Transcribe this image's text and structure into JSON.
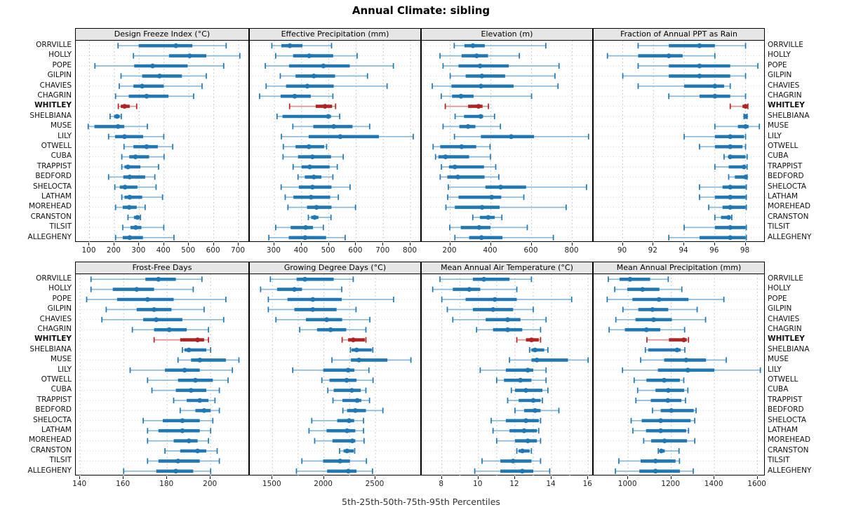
{
  "title": "Annual Climate: sibling",
  "footer": "5th-25th-50th-75th-95th Percentiles",
  "percentile_labels": [
    "5th",
    "25th",
    "50th",
    "75th",
    "95th"
  ],
  "highlight_site": "WHITLEY",
  "sites": [
    "ORRVILLE",
    "HOLLY",
    "POPE",
    "GILPIN",
    "CHAVIES",
    "CHAGRIN",
    "WHITLEY",
    "SHELBIANA",
    "MUSE",
    "LILY",
    "OTWELL",
    "CUBA",
    "TRAPPIST",
    "BEDFORD",
    "SHELOCTA",
    "LATHAM",
    "MOREHEAD",
    "CRANSTON",
    "TILSIT",
    "ALLEGHENY"
  ],
  "colors": {
    "series": "#1f77b4",
    "series_light": "#8ab9dc",
    "highlight": "#b22222",
    "highlight_light": "#d9948e",
    "grid": "#cccccc",
    "header_bg": "#e6e6e6",
    "border": "#000000",
    "text": "#111111"
  },
  "chart_data": [
    {
      "type": "percentile-interval",
      "title": "Design Freeze Index (°C)",
      "ticks": [
        100,
        200,
        300,
        400,
        500,
        600,
        700
      ],
      "minor_ticks": [],
      "range": [
        45,
        745
      ],
      "values": [
        [
          215,
          298,
          448,
          514,
          650
        ],
        [
          277,
          420,
          503,
          570,
          705
        ],
        [
          122,
          280,
          354,
          495,
          640
        ],
        [
          227,
          312,
          382,
          472,
          570
        ],
        [
          220,
          277,
          312,
          399,
          553
        ],
        [
          205,
          258,
          330,
          418,
          519
        ],
        [
          216,
          226,
          241,
          262,
          290
        ],
        [
          183,
          199,
          211,
          222,
          228
        ],
        [
          95,
          120,
          215,
          240,
          333
        ],
        [
          177,
          203,
          241,
          316,
          399
        ],
        [
          239,
          277,
          330,
          375,
          435
        ],
        [
          230,
          260,
          285,
          340,
          400
        ],
        [
          230,
          241,
          255,
          305,
          378
        ],
        [
          177,
          236,
          262,
          324,
          363
        ],
        [
          202,
          222,
          243,
          293,
          368
        ],
        [
          230,
          241,
          262,
          312,
          394
        ],
        [
          205,
          234,
          260,
          290,
          324
        ],
        [
          255,
          279,
          293,
          302,
          305
        ],
        [
          234,
          265,
          286,
          309,
          399
        ],
        [
          205,
          234,
          262,
          315,
          440
        ]
      ]
    },
    {
      "type": "percentile-interval",
      "title": "Effective Precipitation (mm)",
      "ticks": [
        300,
        400,
        500,
        600,
        700,
        800
      ],
      "minor_ticks": [],
      "range": [
        210,
        841
      ],
      "values": [
        [
          291,
          326,
          357,
          403,
          510
        ],
        [
          305,
          369,
          428,
          516,
          604
        ],
        [
          267,
          354,
          480,
          577,
          737
        ],
        [
          322,
          378,
          445,
          523,
          642
        ],
        [
          270,
          343,
          421,
          518,
          714
        ],
        [
          246,
          323,
          375,
          434,
          515
        ],
        [
          356,
          452,
          486,
          512,
          525
        ],
        [
          310,
          330,
          498,
          508,
          540
        ],
        [
          368,
          443,
          518,
          587,
          650
        ],
        [
          326,
          426,
          542,
          684,
          810
        ],
        [
          333,
          378,
          427,
          483,
          492
        ],
        [
          332,
          387,
          440,
          508,
          553
        ],
        [
          369,
          400,
          430,
          503,
          531
        ],
        [
          387,
          412,
          445,
          473,
          515
        ],
        [
          325,
          390,
          440,
          510,
          578
        ],
        [
          340,
          370,
          435,
          505,
          535
        ],
        [
          350,
          420,
          455,
          510,
          598
        ],
        [
          425,
          435,
          448,
          462,
          508
        ],
        [
          305,
          360,
          415,
          442,
          480
        ],
        [
          280,
          353,
          413,
          490,
          560
        ]
      ]
    },
    {
      "type": "percentile-interval",
      "title": "Elevation (m)",
      "ticks": [
        200,
        400,
        600,
        800
      ],
      "minor_ticks": [],
      "range": [
        60,
        905
      ],
      "values": [
        [
          220,
          270,
          312,
          370,
          670
        ],
        [
          150,
          256,
          330,
          386,
          540
        ],
        [
          165,
          241,
          347,
          488,
          735
        ],
        [
          200,
          276,
          356,
          470,
          715
        ],
        [
          112,
          206,
          351,
          512,
          730
        ],
        [
          156,
          209,
          253,
          315,
          600
        ],
        [
          176,
          288,
          339,
          359,
          388
        ],
        [
          224,
          268,
          350,
          362,
          418
        ],
        [
          165,
          245,
          288,
          324,
          447
        ],
        [
          221,
          351,
          500,
          612,
          880
        ],
        [
          116,
          151,
          256,
          328,
          396
        ],
        [
          128,
          142,
          177,
          293,
          398
        ],
        [
          157,
          194,
          223,
          366,
          424
        ],
        [
          151,
          186,
          238,
          369,
          439
        ],
        [
          191,
          373,
          448,
          573,
          870
        ],
        [
          188,
          241,
          404,
          451,
          562
        ],
        [
          179,
          223,
          357,
          443,
          770
        ],
        [
          311,
          346,
          387,
          419,
          454
        ],
        [
          198,
          252,
          342,
          398,
          579
        ],
        [
          223,
          293,
          354,
          457,
          707
        ]
      ]
    },
    {
      "type": "percentile-interval",
      "title": "Fraction of Annual PPT as Rain",
      "ticks": [
        90,
        92,
        94,
        96,
        98
      ],
      "minor_ticks": [],
      "range": [
        88.1,
        99.3
      ],
      "values": [
        [
          91.0,
          93.0,
          95.0,
          96.0,
          98.0
        ],
        [
          89.0,
          91.0,
          93.0,
          93.9,
          96.0
        ],
        [
          91.0,
          93.0,
          95.0,
          97.0,
          98.8
        ],
        [
          90.0,
          93.0,
          95.0,
          97.0,
          98.0
        ],
        [
          91.0,
          94.0,
          96.0,
          96.6,
          97.0
        ],
        [
          93.0,
          95.0,
          96.0,
          97.0,
          98.0
        ],
        [
          97.0,
          97.8,
          98.0,
          98.1,
          98.15
        ],
        [
          97.9,
          97.95,
          98.0,
          98.05,
          98.1
        ],
        [
          96.0,
          97.5,
          98.0,
          98.2,
          98.9
        ],
        [
          94.0,
          96.0,
          97.0,
          97.9,
          98.0
        ],
        [
          95.0,
          96.0,
          97.0,
          97.8,
          98.0
        ],
        [
          96.6,
          96.9,
          97.0,
          98.0,
          98.1
        ],
        [
          96.0,
          96.9,
          97.9,
          98.0,
          98.1
        ],
        [
          96.9,
          97.3,
          98.0,
          98.05,
          98.1
        ],
        [
          95.0,
          96.5,
          97.0,
          98.0,
          98.05
        ],
        [
          95.0,
          96.0,
          97.0,
          98.0,
          98.05
        ],
        [
          95.6,
          96.5,
          97.0,
          98.0,
          98.05
        ],
        [
          96.0,
          96.4,
          96.9,
          97.0,
          97.1
        ],
        [
          94.0,
          96.0,
          97.0,
          98.0,
          98.05
        ],
        [
          93.0,
          95.0,
          97.0,
          98.0,
          98.05
        ]
      ]
    },
    {
      "type": "percentile-interval",
      "title": "Frost-Free Days",
      "ticks": [
        140,
        160,
        180,
        200
      ],
      "minor_ticks": [],
      "range": [
        138,
        218
      ],
      "values": [
        [
          145,
          170,
          176,
          184,
          196
        ],
        [
          145,
          155,
          166,
          174,
          192
        ],
        [
          143,
          157,
          171,
          183,
          207
        ],
        [
          152,
          166,
          174,
          182,
          197
        ],
        [
          150,
          169,
          175,
          187,
          206
        ],
        [
          164,
          174,
          181,
          189,
          199
        ],
        [
          174,
          186,
          194,
          197,
          199
        ],
        [
          187,
          188,
          190,
          198,
          200
        ],
        [
          185,
          191,
          195,
          207,
          213
        ],
        [
          163,
          179,
          188,
          195,
          210
        ],
        [
          171,
          185,
          193,
          201,
          208
        ],
        [
          173,
          184,
          191,
          198,
          204
        ],
        [
          183,
          189,
          195,
          199,
          202
        ],
        [
          186,
          193,
          197,
          200,
          204
        ],
        [
          169,
          178,
          187,
          195,
          201
        ],
        [
          171,
          176,
          187,
          195,
          200
        ],
        [
          171,
          183,
          190,
          194,
          199
        ],
        [
          179,
          186,
          194,
          198,
          203
        ],
        [
          171,
          176,
          185,
          195,
          204
        ],
        [
          160,
          175,
          184,
          192,
          200
        ]
      ]
    },
    {
      "type": "percentile-interval",
      "title": "Growing Degree Days (°C)",
      "ticks": [
        1500,
        2000,
        2500
      ],
      "minor_ticks": [
        1750,
        2250
      ],
      "range": [
        1280,
        2950
      ],
      "values": [
        [
          1480,
          1735,
          1815,
          2095,
          2285
        ],
        [
          1385,
          1545,
          1713,
          1787,
          2173
        ],
        [
          1460,
          1646,
          1892,
          2173,
          2677
        ],
        [
          1460,
          1713,
          1892,
          2123,
          2312
        ],
        [
          1534,
          1825,
          2027,
          2177,
          2446
        ],
        [
          1765,
          1933,
          2065,
          2217,
          2408
        ],
        [
          2177,
          2235,
          2285,
          2397,
          2408
        ],
        [
          2258,
          2269,
          2318,
          2464,
          2475
        ],
        [
          2078,
          2262,
          2341,
          2617,
          2845
        ],
        [
          1697,
          1993,
          2235,
          2296,
          2437
        ],
        [
          1980,
          2054,
          2221,
          2317,
          2477
        ],
        [
          2038,
          2095,
          2271,
          2358,
          2408
        ],
        [
          2088,
          2180,
          2324,
          2363,
          2443
        ],
        [
          2184,
          2225,
          2305,
          2408,
          2573
        ],
        [
          1882,
          2129,
          2244,
          2294,
          2385
        ],
        [
          1855,
          2026,
          2225,
          2305,
          2385
        ],
        [
          1910,
          2083,
          2276,
          2305,
          2390
        ],
        [
          2152,
          2191,
          2225,
          2289,
          2299
        ],
        [
          1786,
          1992,
          2157,
          2253,
          2413
        ],
        [
          1733,
          2031,
          2237,
          2317,
          2472
        ]
      ]
    },
    {
      "type": "percentile-interval",
      "title": "Mean Annual Air Temperature (°C)",
      "ticks": [
        8,
        10,
        12,
        14,
        16
      ],
      "minor_ticks": [
        9,
        11,
        13,
        15
      ],
      "range": [
        6.9,
        16.3
      ],
      "values": [
        [
          7.9,
          9.7,
          10.3,
          11.7,
          12.9
        ],
        [
          7.5,
          8.6,
          9.5,
          10.1,
          12.1
        ],
        [
          8.0,
          9.3,
          10.9,
          12.1,
          15.1
        ],
        [
          8.3,
          9.7,
          10.8,
          11.9,
          13.0
        ],
        [
          8.6,
          10.4,
          11.6,
          12.3,
          13.7
        ],
        [
          9.9,
          10.8,
          11.6,
          12.4,
          13.4
        ],
        [
          12.1,
          12.6,
          12.9,
          13.3,
          13.4
        ],
        [
          12.8,
          12.9,
          13.1,
          13.6,
          13.8
        ],
        [
          11.7,
          12.9,
          13.2,
          14.9,
          16.0
        ],
        [
          10.1,
          11.5,
          12.7,
          13.0,
          13.7
        ],
        [
          11.0,
          11.4,
          12.3,
          12.9,
          13.7
        ],
        [
          11.8,
          12.0,
          12.6,
          13.5,
          13.8
        ],
        [
          11.6,
          12.2,
          13.0,
          13.4,
          13.5
        ],
        [
          12.0,
          12.5,
          13.1,
          13.4,
          14.4
        ],
        [
          10.7,
          11.5,
          12.6,
          13.3,
          13.4
        ],
        [
          10.8,
          11.7,
          12.5,
          13.2,
          13.3
        ],
        [
          11.0,
          12.0,
          12.7,
          13.2,
          13.4
        ],
        [
          12.1,
          12.2,
          12.4,
          12.8,
          12.9
        ],
        [
          10.2,
          11.2,
          11.9,
          12.9,
          13.4
        ],
        [
          9.8,
          11.2,
          12.4,
          13.0,
          13.9
        ]
      ]
    },
    {
      "type": "percentile-interval",
      "title": "Mean Annual Precipitation (mm)",
      "ticks": [
        1000,
        1200,
        1400,
        1600
      ],
      "minor_ticks": [],
      "range": [
        840,
        1637
      ],
      "values": [
        [
          908,
          960,
          1009,
          1102,
          1186
        ],
        [
          938,
          996,
          1067,
          1145,
          1249
        ],
        [
          903,
          1020,
          1143,
          1280,
          1444
        ],
        [
          976,
          1047,
          1113,
          1186,
          1320
        ],
        [
          943,
          1034,
          1118,
          1203,
          1359
        ],
        [
          912,
          985,
          1085,
          1149,
          1262
        ],
        [
          1087,
          1189,
          1258,
          1272,
          1280
        ],
        [
          1080,
          1093,
          1227,
          1244,
          1263
        ],
        [
          1058,
          1167,
          1269,
          1361,
          1455
        ],
        [
          974,
          1138,
          1277,
          1400,
          1613
        ],
        [
          1028,
          1085,
          1167,
          1240,
          1258
        ],
        [
          1044,
          1127,
          1186,
          1260,
          1277
        ],
        [
          1036,
          1105,
          1184,
          1247,
          1266
        ],
        [
          1113,
          1151,
          1200,
          1304,
          1315
        ],
        [
          1014,
          1063,
          1151,
          1290,
          1309
        ],
        [
          1022,
          1083,
          1151,
          1269,
          1280
        ],
        [
          1072,
          1107,
          1169,
          1273,
          1309
        ],
        [
          1140,
          1145,
          1154,
          1170,
          1236
        ],
        [
          957,
          1058,
          1127,
          1220,
          1238
        ],
        [
          941,
          1052,
          1127,
          1240,
          1302
        ]
      ]
    }
  ]
}
